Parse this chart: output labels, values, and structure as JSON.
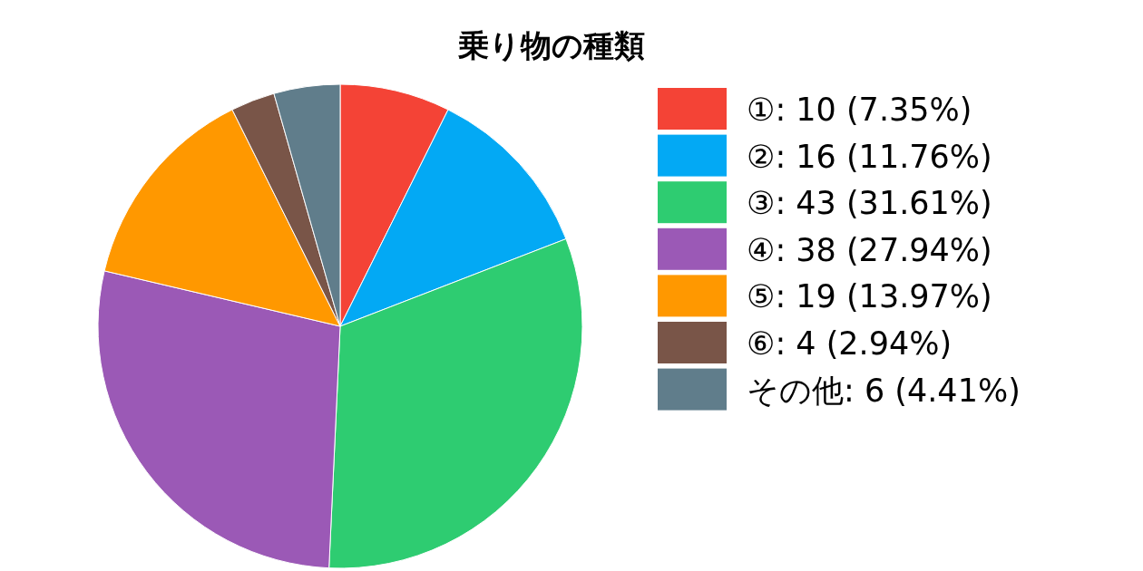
{
  "chart_data": {
    "type": "pie",
    "title": "乗り物の種類",
    "categories": [
      "①: 10 (7.35%)",
      "②: 16 (11.76%)",
      "③: 43 (31.61%)",
      "④: 38 (27.94%)",
      "⑤: 19 (13.97%)",
      "⑥: 4 (2.94%)",
      "その他: 6 (4.41%)"
    ],
    "values": [
      10,
      16,
      43,
      38,
      19,
      4,
      6
    ],
    "colors": [
      "#f44336",
      "#03a9f4",
      "#2ecc71",
      "#9b59b6",
      "#ff9800",
      "#795548",
      "#607d8b"
    ],
    "legend": "right"
  }
}
